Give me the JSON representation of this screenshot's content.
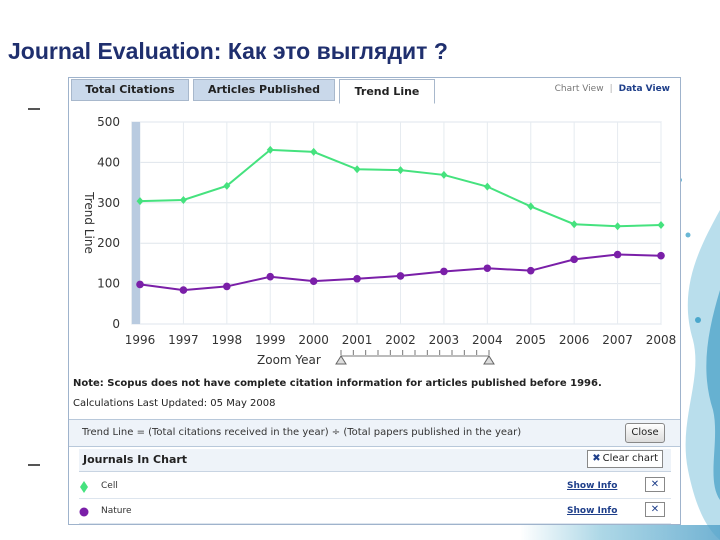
{
  "slide": {
    "title": "Journal Evaluation: Как это выглядит ?"
  },
  "tabs": [
    {
      "label": "Total Citations"
    },
    {
      "label": "Articles Published"
    },
    {
      "label": "Trend Line"
    }
  ],
  "view_links": {
    "chart": "Chart View",
    "data": "Data View"
  },
  "chart_data": {
    "type": "line",
    "title": "",
    "ylabel": "Trend Line",
    "xlabel": "Zoom Year",
    "ylim": [
      0,
      500
    ],
    "yticks": [
      0,
      100,
      200,
      300,
      400,
      500
    ],
    "x": [
      1996,
      1997,
      1998,
      1999,
      2000,
      2001,
      2002,
      2003,
      2004,
      2005,
      2006,
      2007,
      2008
    ],
    "grid": true,
    "series": [
      {
        "name": "Cell",
        "color": "#45e27e",
        "values": [
          304,
          307,
          342,
          431,
          426,
          383,
          381,
          369,
          340,
          291,
          247,
          242,
          245
        ]
      },
      {
        "name": "Nature",
        "color": "#7a1fa8",
        "values": [
          98,
          84,
          93,
          117,
          106,
          112,
          119,
          130,
          138,
          132,
          160,
          172,
          169
        ]
      }
    ]
  },
  "note": "Note: Scopus does not have complete citation information for articles published before 1996.",
  "updated": "Calculations Last Updated: 05 May 2008",
  "formula": "Trend Line = (Total citations received in the year) ÷ (Total papers published in the year)",
  "close_label": "Close",
  "journals": {
    "title": "Journals In Chart",
    "clear_label": "Clear chart",
    "rows": [
      {
        "name": "Cell",
        "color": "#45e27e",
        "marker": "diamond",
        "show_label": "Show Info"
      },
      {
        "name": "Nature",
        "color": "#7a1fa8",
        "marker": "circle",
        "show_label": "Show Info"
      }
    ]
  }
}
